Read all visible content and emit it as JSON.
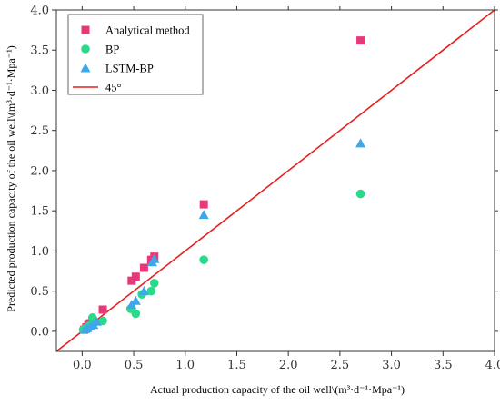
{
  "chart_data": {
    "type": "scatter",
    "xlabel": "Actual production capacity of the oil well\\(m³·d⁻¹·Mpa⁻¹)",
    "ylabel": "Predicted production capacity of the oil well\\(m³·d⁻¹·Mpa⁻¹)",
    "xlim": [
      -0.25,
      4.0
    ],
    "ylim": [
      -0.25,
      4.0
    ],
    "xticks": [
      "0.0",
      "0.5",
      "1.0",
      "1.5",
      "2.0",
      "2.5",
      "3.0",
      "3.5",
      "4.0"
    ],
    "yticks": [
      "0.0",
      "0.5",
      "1.0",
      "1.5",
      "2.0",
      "2.5",
      "3.0",
      "3.5",
      "4.0"
    ],
    "grid": false,
    "legend_position": "top-left",
    "series": [
      {
        "name": "Analytical method",
        "marker": "square",
        "color": "#e8387a",
        "points": [
          [
            0.02,
            0.02
          ],
          [
            0.04,
            0.05
          ],
          [
            0.06,
            0.08
          ],
          [
            0.08,
            0.1
          ],
          [
            0.1,
            0.12
          ],
          [
            0.2,
            0.27
          ],
          [
            0.48,
            0.63
          ],
          [
            0.52,
            0.68
          ],
          [
            0.6,
            0.79
          ],
          [
            0.67,
            0.89
          ],
          [
            0.7,
            0.93
          ],
          [
            1.18,
            1.58
          ],
          [
            2.7,
            3.62
          ]
        ]
      },
      {
        "name": "BP",
        "marker": "circle",
        "color": "#2bd98a",
        "points": [
          [
            0.01,
            0.02
          ],
          [
            0.04,
            0.04
          ],
          [
            0.07,
            0.07
          ],
          [
            0.1,
            0.17
          ],
          [
            0.2,
            0.13
          ],
          [
            0.47,
            0.28
          ],
          [
            0.52,
            0.22
          ],
          [
            0.58,
            0.46
          ],
          [
            0.67,
            0.5
          ],
          [
            0.7,
            0.6
          ],
          [
            1.18,
            0.89
          ],
          [
            2.7,
            1.71
          ]
        ]
      },
      {
        "name": "LSTM-BP",
        "marker": "triangle",
        "color": "#3da7e8",
        "points": [
          [
            0.03,
            0.03
          ],
          [
            0.05,
            0.04
          ],
          [
            0.08,
            0.06
          ],
          [
            0.11,
            0.08
          ],
          [
            0.14,
            0.12
          ],
          [
            0.48,
            0.33
          ],
          [
            0.52,
            0.38
          ],
          [
            0.6,
            0.5
          ],
          [
            0.68,
            0.86
          ],
          [
            0.7,
            0.9
          ],
          [
            1.18,
            1.45
          ],
          [
            2.7,
            2.34
          ]
        ]
      },
      {
        "name": "45°",
        "type": "line",
        "color": "#e81f1f",
        "points": [
          [
            -0.25,
            -0.25
          ],
          [
            4.0,
            4.0
          ]
        ]
      }
    ]
  }
}
